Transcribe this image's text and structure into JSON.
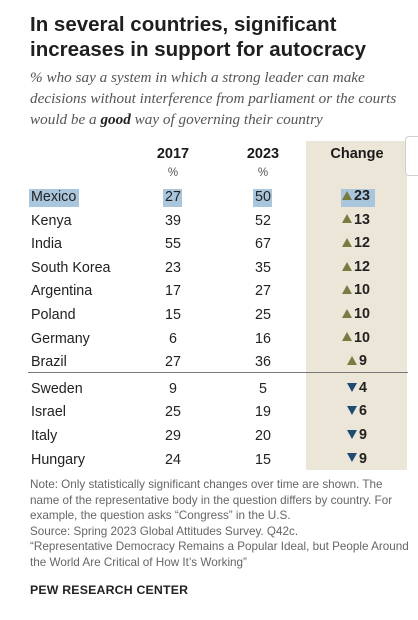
{
  "title": "In several countries, significant increases in support for autocracy",
  "subtitle_before": "% who say a system in which a strong leader can make decisions without interference from parliament or the courts would be a ",
  "subtitle_emph": "good",
  "subtitle_after": " way of governing their country",
  "columns": {
    "y2017": "2017",
    "y2023": "2023",
    "change": "Change",
    "unit": "%"
  },
  "chart_data": {
    "type": "table",
    "title": "In several countries, significant increases in support for autocracy",
    "columns": [
      "2017",
      "2023",
      "Change"
    ],
    "rows": [
      {
        "country": "Mexico",
        "y2017": "27",
        "y2023": "50",
        "change": "23",
        "direction": "up"
      },
      {
        "country": "Kenya",
        "y2017": "39",
        "y2023": "52",
        "change": "13",
        "direction": "up"
      },
      {
        "country": "India",
        "y2017": "55",
        "y2023": "67",
        "change": "12",
        "direction": "up"
      },
      {
        "country": "South Korea",
        "y2017": "23",
        "y2023": "35",
        "change": "12",
        "direction": "up"
      },
      {
        "country": "Argentina",
        "y2017": "17",
        "y2023": "27",
        "change": "10",
        "direction": "up"
      },
      {
        "country": "Poland",
        "y2017": "15",
        "y2023": "25",
        "change": "10",
        "direction": "up"
      },
      {
        "country": "Germany",
        "y2017": "6",
        "y2023": "16",
        "change": "10",
        "direction": "up"
      },
      {
        "country": "Brazil",
        "y2017": "27",
        "y2023": "36",
        "change": "9",
        "direction": "up"
      },
      {
        "country": "Sweden",
        "y2017": "9",
        "y2023": "5",
        "change": "4",
        "direction": "down"
      },
      {
        "country": "Israel",
        "y2017": "25",
        "y2023": "19",
        "change": "6",
        "direction": "down"
      },
      {
        "country": "Italy",
        "y2017": "29",
        "y2023": "20",
        "change": "9",
        "direction": "down"
      },
      {
        "country": "Hungary",
        "y2017": "24",
        "y2023": "15",
        "change": "9",
        "direction": "down"
      }
    ],
    "highlighted_row": "Mexico"
  },
  "colors": {
    "up_triangle": "#7a7b42",
    "down_triangle": "#1f4a73",
    "change_background": "#ece6d8",
    "highlight": "#a9c6dd"
  },
  "notes": [
    "Note: Only statistically significant changes over time are shown. The name of the representative body in the question differs by country. For example, the question asks “Congress” in the U.S.",
    "Source: Spring 2023 Global Attitudes Survey. Q42c.",
    "“Representative Democracy Remains a Popular Ideal, but People Around the World Are Critical of How It’s Working”"
  ],
  "footer": "PEW RESEARCH CENTER"
}
